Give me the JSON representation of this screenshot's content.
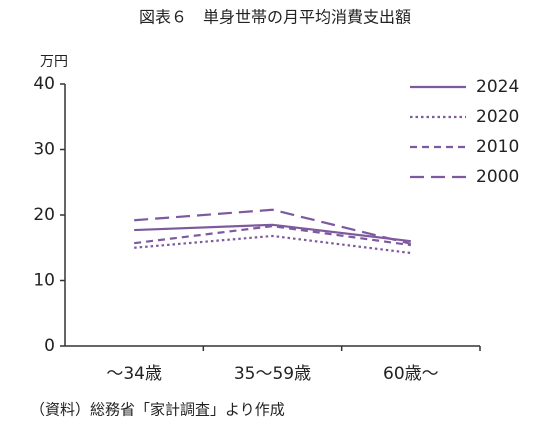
{
  "chart_data": {
    "type": "line",
    "title": "図表６　単身世帯の月平均消費支出額",
    "y_unit": "万円",
    "source": "（資料）総務省「家計調査」より作成",
    "categories": [
      "～34歳",
      "35～59歳",
      "60歳～"
    ],
    "series": [
      {
        "name": "2024",
        "color": "#7d5a9e",
        "line_style": "solid",
        "values": [
          17.7,
          18.5,
          16.0
        ]
      },
      {
        "name": "2020",
        "color": "#7d5a9e",
        "line_style": "dotted",
        "values": [
          15.0,
          16.8,
          14.2
        ]
      },
      {
        "name": "2010",
        "color": "#7d5a9e",
        "line_style": "dashed",
        "values": [
          15.7,
          18.3,
          15.4
        ]
      },
      {
        "name": "2000",
        "color": "#7d5a9e",
        "line_style": "long-dashed",
        "values": [
          19.2,
          20.8,
          15.6
        ]
      }
    ],
    "ylim": [
      0,
      40
    ],
    "yticks": [
      0,
      10,
      20,
      30,
      40
    ],
    "legend": "upper right"
  }
}
